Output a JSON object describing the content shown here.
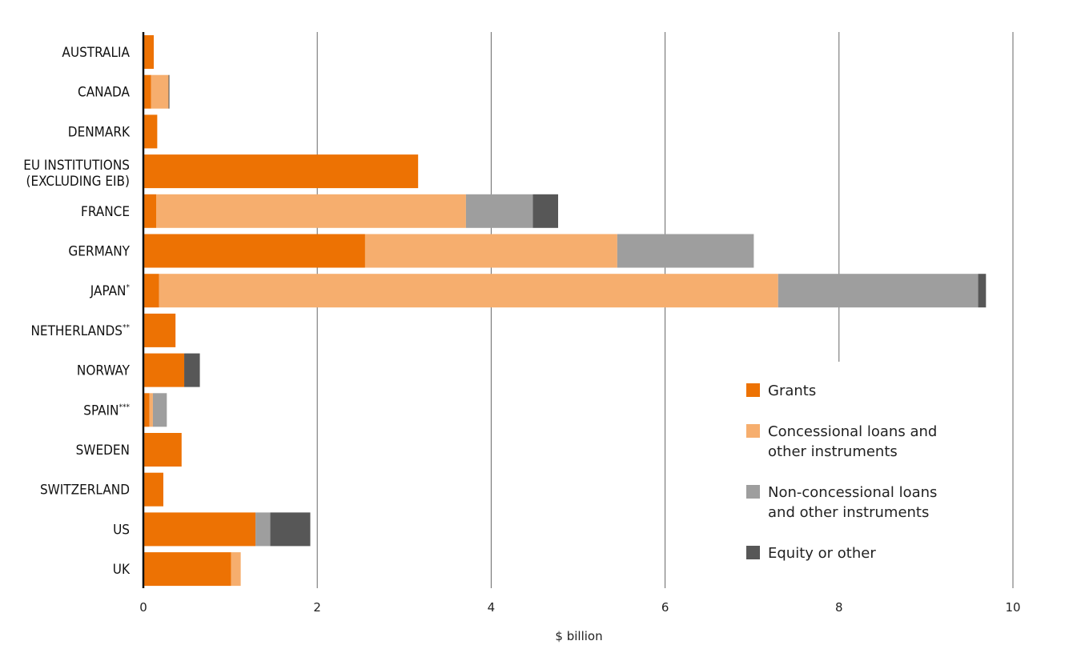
{
  "chart_data": {
    "type": "bar",
    "orientation": "horizontal",
    "stacked": true,
    "xlabel": "$ billion",
    "ylabel": "",
    "xlim": [
      0,
      10
    ],
    "xticks": [
      "0",
      "2",
      "4",
      "6",
      "8",
      "10"
    ],
    "grid": true,
    "legend_position": "bottom-right",
    "categories": [
      {
        "label": "AUSTRALIA",
        "sup": "",
        "sub": ""
      },
      {
        "label": "CANADA",
        "sup": "",
        "sub": ""
      },
      {
        "label": "DENMARK",
        "sup": "",
        "sub": ""
      },
      {
        "label": "EU INSTITUTIONS",
        "sup": "",
        "sub": "(EXCLUDING EIB)"
      },
      {
        "label": "FRANCE",
        "sup": "",
        "sub": ""
      },
      {
        "label": "GERMANY",
        "sup": "",
        "sub": ""
      },
      {
        "label": "JAPAN",
        "sup": "*",
        "sub": ""
      },
      {
        "label": "NETHERLANDS",
        "sup": "**",
        "sub": ""
      },
      {
        "label": "NORWAY",
        "sup": "",
        "sub": ""
      },
      {
        "label": "SPAIN",
        "sup": "***",
        "sub": ""
      },
      {
        "label": "SWEDEN",
        "sup": "",
        "sub": ""
      },
      {
        "label": "SWITZERLAND",
        "sup": "",
        "sub": ""
      },
      {
        "label": "US",
        "sup": "",
        "sub": ""
      },
      {
        "label": "UK",
        "sup": "",
        "sub": ""
      }
    ],
    "series": [
      {
        "name": "Grants",
        "legend_lines": [
          "Grants"
        ],
        "color": "#ED7203",
        "values": [
          0.12,
          0.09,
          0.16,
          3.16,
          0.15,
          2.55,
          0.18,
          0.37,
          0.47,
          0.07,
          0.44,
          0.23,
          1.29,
          1.01
        ]
      },
      {
        "name": "Concessional loans and other instruments",
        "legend_lines": [
          "Concessional loans and",
          "other instruments"
        ],
        "color": "#F6AE6E",
        "values": [
          0,
          0.2,
          0,
          0,
          3.56,
          2.9,
          7.12,
          0,
          0,
          0.04,
          0,
          0,
          0,
          0.11
        ]
      },
      {
        "name": "Non-concessional loans and other instruments",
        "legend_lines": [
          "Non-concessional loans",
          "and other instruments"
        ],
        "color": "#9E9E9E",
        "values": [
          0,
          0,
          0,
          0,
          0.77,
          1.57,
          2.3,
          0,
          0,
          0.16,
          0,
          0,
          0.17,
          0
        ]
      },
      {
        "name": "Equity or other",
        "legend_lines": [
          "Equity or other"
        ],
        "color": "#575757",
        "values": [
          0,
          0.01,
          0,
          0,
          0.29,
          0,
          0.09,
          0,
          0.18,
          0,
          0,
          0,
          0.46,
          0
        ]
      }
    ]
  }
}
